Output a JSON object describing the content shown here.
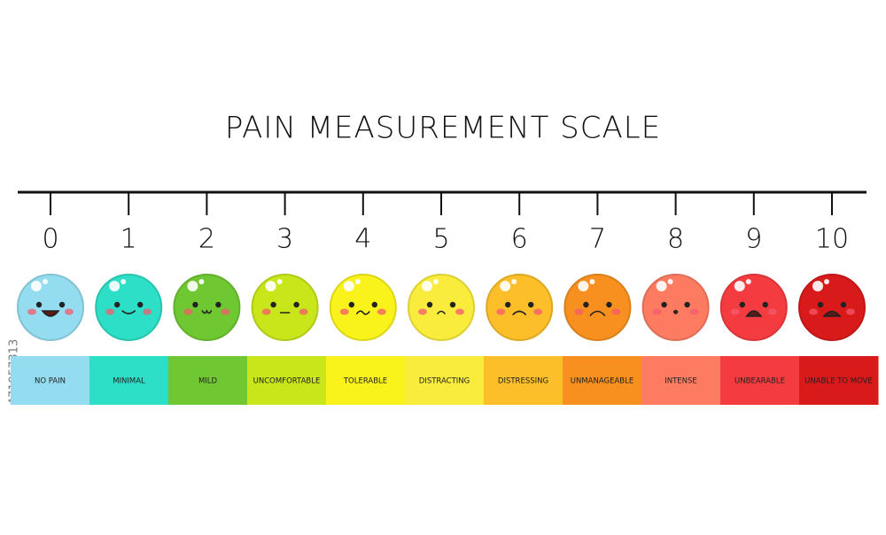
{
  "title": "PAIN MEASUREMENT SCALE",
  "watermark": "471957313",
  "levels": [
    {
      "number": 0,
      "label": "NO PAIN",
      "color": "#94dcef"
    },
    {
      "number": 1,
      "label": "MINIMAL",
      "color": "#2ddfc6"
    },
    {
      "number": 2,
      "label": "MILD",
      "color": "#6fc832"
    },
    {
      "number": 3,
      "label": "UNCOMFORTABLE",
      "color": "#c8e61a"
    },
    {
      "number": 4,
      "label": "TOLERABLE",
      "color": "#faf31b"
    },
    {
      "number": 5,
      "label": "DISTRACTING",
      "color": "#f9ec3c"
    },
    {
      "number": 6,
      "label": "DISTRESSING",
      "color": "#fcbf2a"
    },
    {
      "number": 7,
      "label": "UNMANAGEABLE",
      "color": "#f7901f"
    },
    {
      "number": 8,
      "label": "INTENSE",
      "color": "#fd7c61"
    },
    {
      "number": 9,
      "label": "UNBEARABLE",
      "color": "#f43c40"
    },
    {
      "number": 10,
      "label": "UNABLE TO MOVE",
      "color": "#d91a1a"
    }
  ]
}
